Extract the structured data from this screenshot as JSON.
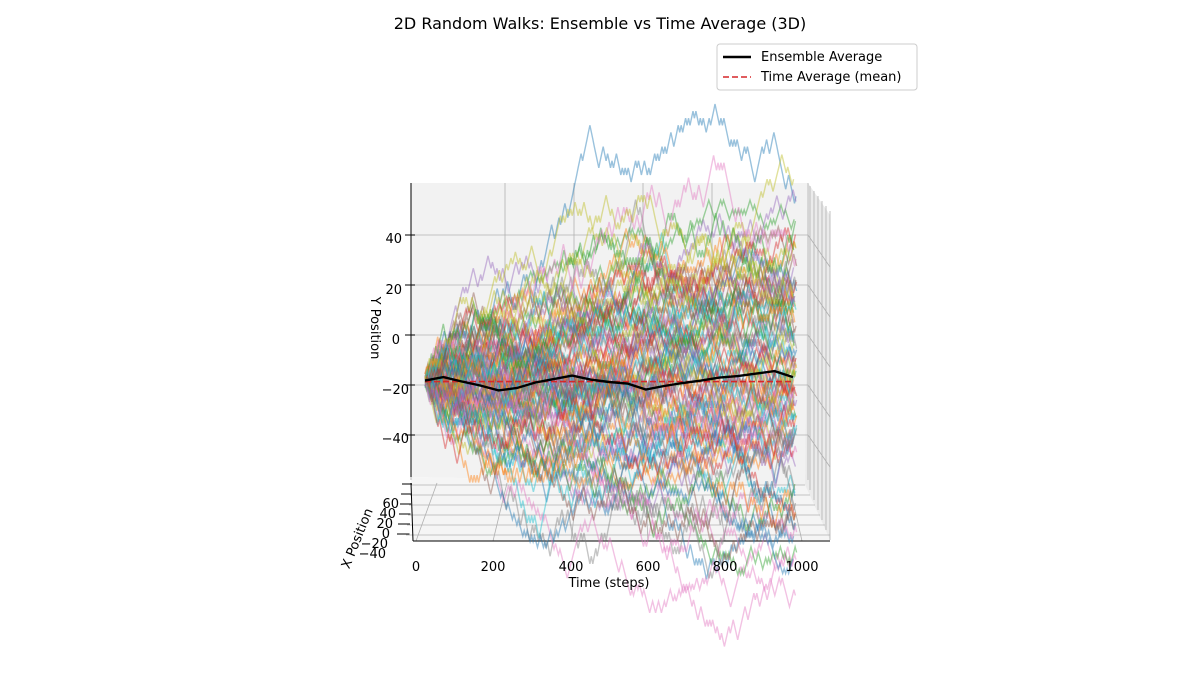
{
  "chart_data": {
    "type": "line",
    "projection": "3d",
    "title": "2D Random Walks: Ensemble vs Time Average (3D)",
    "xlabel": "Time (steps)",
    "ylabel": "Y Position",
    "zlabel": "X Position",
    "time_ticks": [
      "0",
      "200",
      "400",
      "600",
      "800",
      "1000"
    ],
    "y_ticks": [
      "40",
      "20",
      "0",
      "−20",
      "−40"
    ],
    "x_position_ticks": [
      "60",
      "40",
      "20",
      "0",
      "−20",
      "−40"
    ],
    "time_range": [
      0,
      1000
    ],
    "y_range": [
      -58,
      58
    ],
    "grid": true,
    "legend": {
      "position": "top-right",
      "entries": [
        {
          "label": "Ensemble Average",
          "color": "#000000",
          "style": "solid"
        },
        {
          "label": "Time Average (mean)",
          "color": "#d62728",
          "style": "dashed"
        }
      ]
    },
    "num_walks": 100,
    "num_steps": 1000,
    "walk_colors": [
      "#1f77b4",
      "#ff7f0e",
      "#2ca02c",
      "#d62728",
      "#9467bd",
      "#8c564b",
      "#e377c2",
      "#7f7f7f",
      "#bcbd22",
      "#17becf"
    ],
    "ensemble_average": {
      "time": [
        0,
        50,
        100,
        150,
        200,
        250,
        300,
        350,
        400,
        450,
        500,
        550,
        600,
        650,
        700,
        750,
        800,
        850,
        900,
        950,
        1000
      ],
      "y": [
        -9,
        -8.3,
        -9.2,
        -10,
        -11,
        -10.5,
        -9.4,
        -8.7,
        -8,
        -8.8,
        -9.3,
        -9.6,
        -10.8,
        -10.1,
        -9.5,
        -9,
        -8.4,
        -8.1,
        -7.6,
        -7.1,
        -8.3
      ]
    },
    "time_average_mean": -9.2
  }
}
